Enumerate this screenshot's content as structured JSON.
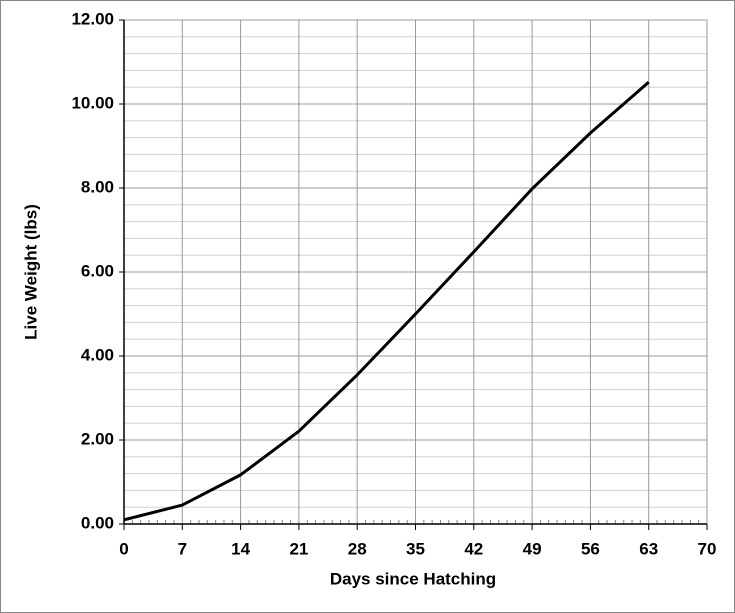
{
  "chart_data": {
    "type": "line",
    "xlabel": "Days since Hatching",
    "ylabel": "Live Weight (lbs)",
    "x": [
      0,
      7,
      14,
      21,
      28,
      35,
      42,
      49,
      56,
      63
    ],
    "series": [
      {
        "color": "#000000",
        "values": [
          0.1,
          0.45,
          1.17,
          2.21,
          3.55,
          5.0,
          6.48,
          7.98,
          9.31,
          10.52
        ]
      }
    ],
    "xlim": [
      0,
      70
    ],
    "xticks": [
      0,
      7,
      14,
      21,
      28,
      35,
      42,
      49,
      56,
      63,
      70
    ],
    "ylim": [
      0,
      12
    ],
    "yticks": [
      {
        "value": 0,
        "label": "0.00"
      },
      {
        "value": 2,
        "label": "2.00"
      },
      {
        "value": 4,
        "label": "4.00"
      },
      {
        "value": 6,
        "label": "6.00"
      },
      {
        "value": 8,
        "label": "8.00"
      },
      {
        "value": 10,
        "label": "10.00"
      },
      {
        "value": 12,
        "label": "12.00"
      }
    ],
    "grid": true,
    "minor_divisions": {
      "x": 7,
      "y": 5
    }
  }
}
